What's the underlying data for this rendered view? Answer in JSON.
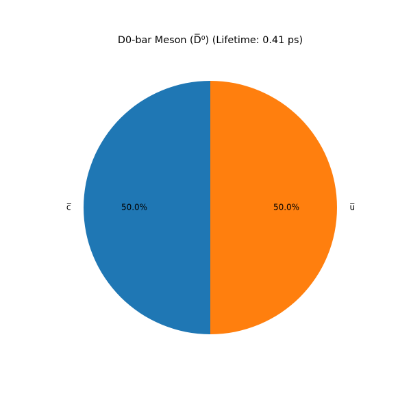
{
  "chart_data": {
    "type": "pie",
    "title": "D0-bar Meson (D̅⁰) (Lifetime: 0.41 ps)",
    "labels": [
      "c̅",
      "u̅"
    ],
    "values": [
      50.0,
      50.0
    ],
    "percent_labels": [
      "50.0%",
      "50.0%"
    ],
    "colors": [
      "#1f77b4",
      "#ff7f0e"
    ],
    "start_angle_deg": 90,
    "direction": "counterclockwise",
    "legend": "none"
  }
}
